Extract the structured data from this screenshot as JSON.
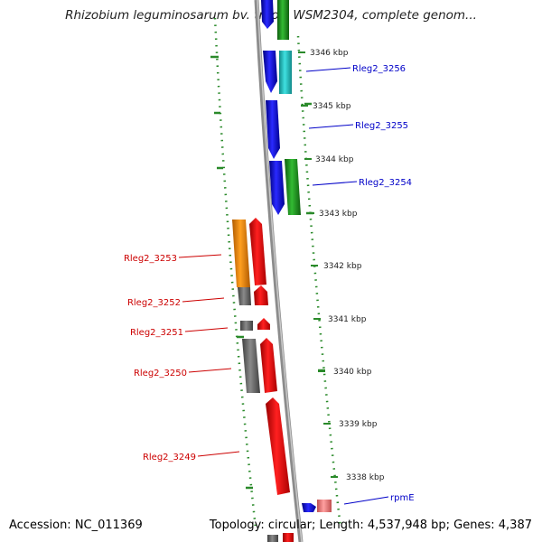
{
  "title": "Rhizobium leguminosarum bv. trifolii WSM2304, complete genom...",
  "footer": {
    "accession": "Accession: NC_011369",
    "summary": "Topology: circular; Length: 4,537,948 bp; Genes: 4,387"
  },
  "colors": {
    "forward_label": "#0000c8",
    "reverse_label": "#cc0000",
    "backbone": "#8c8c8c",
    "gc_dots": "#2a8a2a"
  },
  "scale": {
    "ticks": [
      "3346 kbp",
      "3345 kbp",
      "3344 kbp",
      "3343 kbp",
      "3342 kbp",
      "3341 kbp",
      "3340 kbp",
      "3339 kbp",
      "3338 kbp"
    ]
  },
  "forward_genes": [
    {
      "label": "Rleg2_3256",
      "color": "#0000ee"
    },
    {
      "label": "Rleg2_3255",
      "color": "#0000ee"
    },
    {
      "label": "Rleg2_3254",
      "color": "#0000ee"
    },
    {
      "label": "rpmE",
      "color": "#0000ee"
    }
  ],
  "reverse_genes": [
    {
      "label": "Rleg2_3253",
      "color": "#ee0000"
    },
    {
      "label": "Rleg2_3252",
      "color": "#ee0000"
    },
    {
      "label": "Rleg2_3251",
      "color": "#ee0000"
    },
    {
      "label": "Rleg2_3250",
      "color": "#ee0000"
    },
    {
      "label": "Rleg2_3249",
      "color": "#ee0000"
    }
  ],
  "cog_colors": {
    "cyan": "#22c8c8",
    "green": "#1f9a1f",
    "orange": "#ff8c00",
    "grey": "#707070",
    "pink": "#f08080"
  }
}
